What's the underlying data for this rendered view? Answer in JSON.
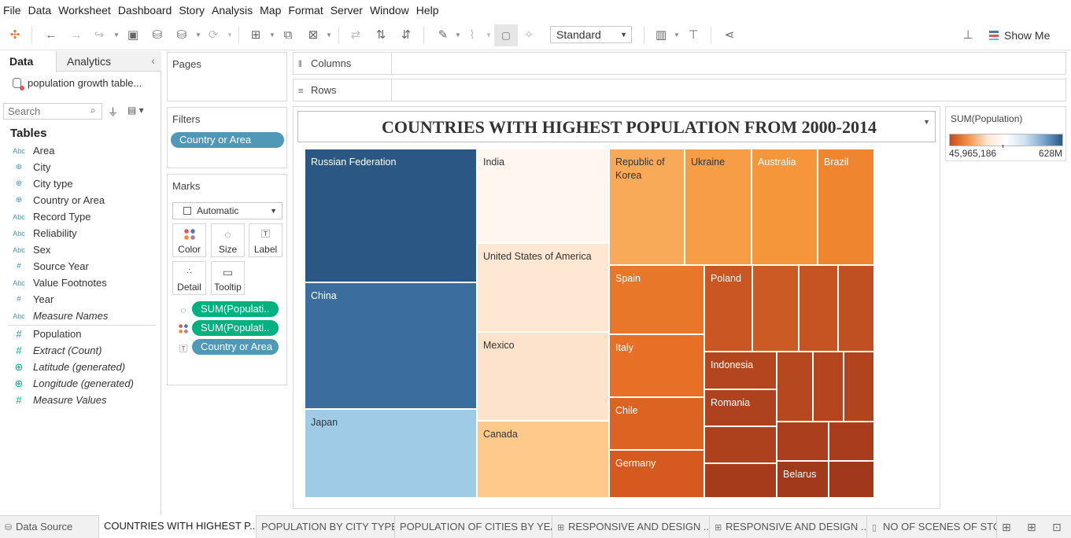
{
  "menu": [
    "File",
    "Data",
    "Worksheet",
    "Dashboard",
    "Story",
    "Analysis",
    "Map",
    "Format",
    "Server",
    "Window",
    "Help"
  ],
  "toolbar": {
    "fit_select": "Standard",
    "show_me": "Show Me"
  },
  "data_pane": {
    "tab_data": "Data",
    "tab_analytics": "Analytics",
    "datasource": "population growth table...",
    "search_placeholder": "Search",
    "tables_heading": "Tables",
    "dimensions": [
      {
        "label": "Area",
        "type": "Abc"
      },
      {
        "label": "City",
        "type": "geo"
      },
      {
        "label": "City type",
        "type": "geo"
      },
      {
        "label": "Country or Area",
        "type": "geo"
      },
      {
        "label": "Record Type",
        "type": "Abc"
      },
      {
        "label": "Reliability",
        "type": "Abc"
      },
      {
        "label": "Sex",
        "type": "Abc"
      },
      {
        "label": "Source Year",
        "type": "#"
      },
      {
        "label": "Value Footnotes",
        "type": "Abc"
      },
      {
        "label": "Year",
        "type": "#"
      },
      {
        "label": "Measure Names",
        "type": "Abc"
      }
    ],
    "measures": [
      {
        "label": "Population",
        "type": "#"
      },
      {
        "label": "Extract (Count)",
        "type": "#"
      },
      {
        "label": "Latitude (generated)",
        "type": "geo"
      },
      {
        "label": "Longitude (generated)",
        "type": "geo"
      },
      {
        "label": "Measure Values",
        "type": "#"
      }
    ]
  },
  "pages": {
    "title": "Pages"
  },
  "filters": {
    "title": "Filters",
    "pills": [
      "Country or Area"
    ]
  },
  "marks": {
    "title": "Marks",
    "mark_type": "Automatic",
    "buttons": [
      "Color",
      "Size",
      "Label",
      "Detail",
      "Tooltip"
    ],
    "shelf_pills": [
      {
        "icon": "size-icon",
        "label": "SUM(Populati..",
        "kind": "measure"
      },
      {
        "icon": "color-icon",
        "label": "SUM(Populati..",
        "kind": "measure"
      },
      {
        "icon": "label-icon",
        "label": "Country or Area",
        "kind": "dimension"
      }
    ]
  },
  "shelves": {
    "columns": "Columns",
    "rows": "Rows"
  },
  "worksheet": {
    "title": "COUNTRIES WITH  HIGHEST POPULATION FROM 2000-2014",
    "tiles": [
      {
        "label": "Russian Federation",
        "color": "#2a5783"
      },
      {
        "label": "China",
        "color": "#3b6e9f"
      },
      {
        "label": "Japan",
        "color": "#a0cbe7"
      },
      {
        "label": "India",
        "color": "#fef6ef"
      },
      {
        "label": "United States of America",
        "color": "#fee8d4"
      },
      {
        "label": "Mexico",
        "color": "#fee3cc"
      },
      {
        "label": "Canada",
        "color": "#fdca8c"
      },
      {
        "label": "Republic of Korea",
        "color": "#f8aa58"
      },
      {
        "label": "Ukraine",
        "color": "#f69d45"
      },
      {
        "label": "Australia",
        "color": "#f5963b"
      },
      {
        "label": "Brazil",
        "color": "#f08530"
      },
      {
        "label": "Spain",
        "color": "#e9772a"
      },
      {
        "label": "Poland",
        "color": "#c95623"
      },
      {
        "label": "",
        "color": "#cb5a24"
      },
      {
        "label": "",
        "color": "#c65422"
      },
      {
        "label": "",
        "color": "#c04f21"
      },
      {
        "label": "Italy",
        "color": "#e76f26"
      },
      {
        "label": "Indonesia",
        "color": "#b4461f"
      },
      {
        "label": "",
        "color": "#b6481f"
      },
      {
        "label": "",
        "color": "#b4451e"
      },
      {
        "label": "",
        "color": "#b1431d"
      },
      {
        "label": "Romania",
        "color": "#ae421e"
      },
      {
        "label": "Chile",
        "color": "#dd6323"
      },
      {
        "label": "",
        "color": "#ad401d"
      },
      {
        "label": "",
        "color": "#aa3e1d"
      },
      {
        "label": "",
        "color": "#a83c1c"
      },
      {
        "label": "Germany",
        "color": "#d65a20"
      },
      {
        "label": "",
        "color": "#a63b1c"
      },
      {
        "label": "Belarus",
        "color": "#a3391b"
      },
      {
        "label": "",
        "color": "#a1371b"
      }
    ]
  },
  "legend": {
    "title": "SUM(Population)",
    "min": "45,965,186",
    "max": "628M",
    "gradient": [
      "#c84b1d",
      "#f29449",
      "#fde7d3",
      "#ffffff",
      "#cfe1ef",
      "#7aa6cc",
      "#2a5783"
    ]
  },
  "bottom_tabs": [
    {
      "label": "Data Source",
      "icon": "database-icon",
      "active": false
    },
    {
      "label": "COUNTRIES WITH HIGHEST P...",
      "icon": "",
      "active": true
    },
    {
      "label": "POPULATION BY CITY TYPE",
      "icon": "",
      "active": false
    },
    {
      "label": "POPULATION OF CITIES BY YEAR",
      "icon": "",
      "active": false
    },
    {
      "label": "RESPONSIVE AND DESIGN ...",
      "icon": "dashboard-icon",
      "active": false
    },
    {
      "label": "RESPONSIVE AND DESIGN ...",
      "icon": "dashboard-icon",
      "active": false
    },
    {
      "label": "NO OF SCENES OF STOR",
      "icon": "story-icon",
      "active": false
    }
  ]
}
